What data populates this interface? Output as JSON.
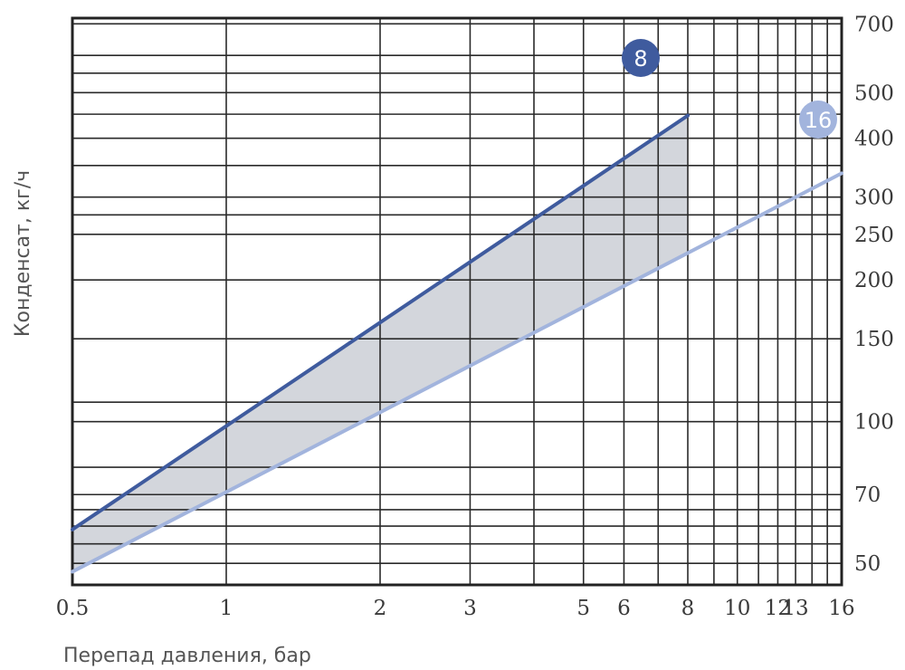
{
  "chart_data": {
    "type": "line",
    "xlabel": "Перепад давления, бар",
    "ylabel": "Конденсат, кг/ч",
    "x_scale": "log",
    "y_scale": "log",
    "xlim": [
      0.5,
      16
    ],
    "ylim": [
      45,
      720
    ],
    "x_ticks": [
      0.5,
      1,
      2,
      3,
      5,
      6,
      8,
      10,
      12,
      13,
      16
    ],
    "x_tick_labels": [
      "0.5",
      "1",
      "2",
      "3",
      "5",
      "6",
      "8",
      "10",
      "12",
      "13",
      "16"
    ],
    "y_ticks": [
      50,
      70,
      100,
      150,
      200,
      250,
      300,
      400,
      500,
      700
    ],
    "y_tick_labels": [
      "50",
      "70",
      "100",
      "150",
      "200",
      "250",
      "300",
      "400",
      "500",
      "700"
    ],
    "x_grid": [
      0.5,
      1,
      2,
      3,
      4,
      5,
      6,
      7,
      8,
      9,
      10,
      11,
      12,
      13,
      14,
      15,
      16
    ],
    "y_grid": [
      50,
      55,
      60,
      65,
      70,
      80,
      100,
      110,
      150,
      200,
      250,
      275,
      300,
      350,
      400,
      450,
      500,
      550,
      600,
      700
    ],
    "grid": true,
    "series": [
      {
        "name": "8",
        "color": "#3f5b9e",
        "x": [
          0.5,
          8
        ],
        "y": [
          59,
          447
        ]
      },
      {
        "name": "16",
        "color": "#a2b4dd",
        "x": [
          0.5,
          16
        ],
        "y": [
          48,
          337
        ]
      }
    ],
    "shaded_region": {
      "color": "#d3d6dc",
      "between": [
        "8",
        "16"
      ],
      "x_range": [
        0.5,
        8
      ]
    }
  }
}
